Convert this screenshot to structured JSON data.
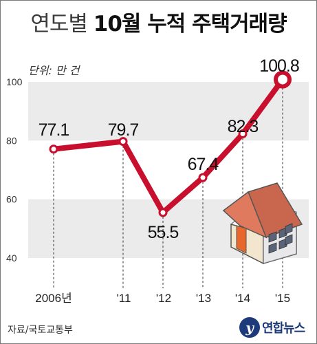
{
  "title": {
    "light": "연도별",
    "bold": "10월 누적 주택거래량"
  },
  "unit": "단위: 만 건",
  "source": "자료/국토교통부",
  "logo": {
    "mark": "y",
    "text": "연합뉴스"
  },
  "colors": {
    "line": "#c8102e",
    "band": "#ebebeb",
    "text": "#111111"
  },
  "chart_data": {
    "type": "line",
    "categories": [
      "2006년",
      "'11",
      "'12",
      "'13",
      "'14",
      "'15"
    ],
    "series": [
      {
        "values": [
          77.1,
          79.7,
          55.5,
          67.4,
          82.3,
          100.8
        ]
      }
    ],
    "labels": [
      "77.1",
      "79.7",
      "55.5",
      "67.4",
      "82.3",
      "100.8"
    ],
    "yticks": [
      40,
      60,
      80,
      100
    ],
    "ylim": [
      40,
      100
    ],
    "grid": "alternating bands",
    "decoration": "house-icon"
  }
}
